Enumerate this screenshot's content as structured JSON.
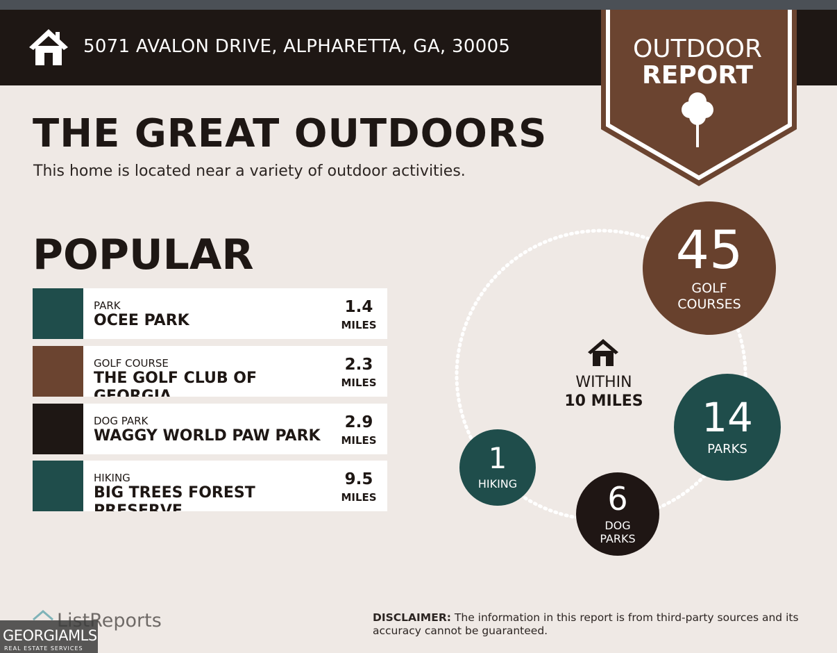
{
  "header": {
    "address": "5071 AVALON DRIVE, ALPHARETTA, GA, 30005"
  },
  "badge": {
    "line1": "OUTDOOR",
    "line2": "REPORT"
  },
  "title": "THE GREAT OUTDOORS",
  "subtitle": "This home is located near a variety of outdoor activities.",
  "popular": {
    "heading": "POPULAR",
    "items": [
      {
        "category": "PARK",
        "name": "OCEE PARK",
        "distance": 1.4,
        "unit": "MILES"
      },
      {
        "category": "GOLF COURSE",
        "name": "THE GOLF CLUB OF GEORGIA",
        "distance": 2.3,
        "unit": "MILES"
      },
      {
        "category": "DOG PARK",
        "name": "WAGGY WORLD PAW PARK",
        "distance": 2.9,
        "unit": "MILES"
      },
      {
        "category": "HIKING",
        "name": "BIG TREES FOREST PRESERVE",
        "distance": 9.5,
        "unit": "MILES"
      }
    ]
  },
  "summary": {
    "within": "WITHIN",
    "radius": "10 MILES",
    "circles": [
      {
        "count": 45,
        "label": "GOLF COURSES"
      },
      {
        "count": 14,
        "label": "PARKS"
      },
      {
        "count": 6,
        "label": "DOG PARKS"
      },
      {
        "count": 1,
        "label": "HIKING"
      }
    ]
  },
  "footer": {
    "logo": "ListReports",
    "disclaimer_label": "DISCLAIMER:",
    "disclaimer": "The information in this report is from third-party sources and its accuracy cannot be guaranteed."
  },
  "watermark": {
    "brand": "GEORGIAMLS",
    "tagline": "REAL ESTATE SERVICES"
  }
}
